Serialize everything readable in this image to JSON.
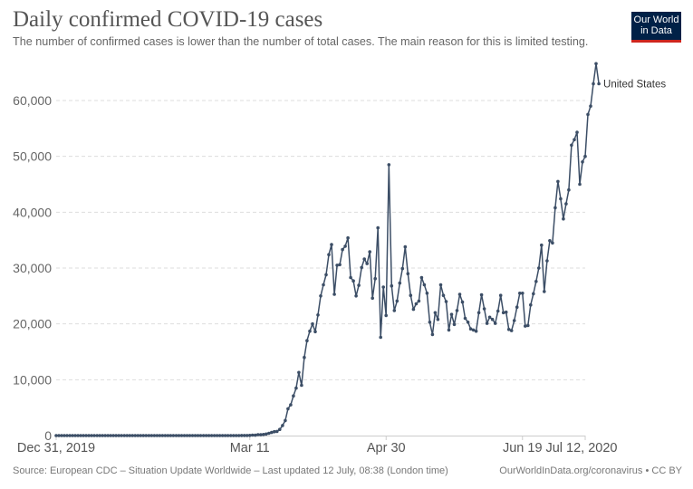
{
  "header": {
    "title": "Daily confirmed COVID-19 cases",
    "subtitle": "The number of confirmed cases is lower than the number of total cases. The main reason for this is limited testing.",
    "logo_line1": "Our World",
    "logo_line2": "in Data"
  },
  "footer": {
    "source": "Source: European CDC – Situation Update Worldwide – Last updated 12 July, 08:38 (London time)",
    "credit": "OurWorldInData.org/coronavirus • CC BY"
  },
  "colors": {
    "series": "#3c4e66",
    "grid": "#dddddd",
    "logo_bg": "#002147",
    "logo_accent": "#ce261e"
  },
  "chart_data": {
    "type": "line",
    "title": "Daily confirmed COVID-19 cases",
    "subtitle": "The number of confirmed cases is lower than the number of total cases. The main reason for this is limited testing.",
    "xlabel": "",
    "ylabel": "",
    "x_start": "2019-12-31",
    "x_end": "2020-07-12",
    "x_unit": "day",
    "xticks": [
      {
        "label": "Dec 31, 2019",
        "day": 0
      },
      {
        "label": "Mar 11",
        "day": 71
      },
      {
        "label": "Apr 30",
        "day": 121
      },
      {
        "label": "Jun 19",
        "day": 171
      },
      {
        "label": "Jul 12, 2020",
        "day": 194
      }
    ],
    "yticks": [
      {
        "label": "0",
        "value": 0
      },
      {
        "label": "10,000",
        "value": 10000
      },
      {
        "label": "20,000",
        "value": 20000
      },
      {
        "label": "30,000",
        "value": 30000
      },
      {
        "label": "40,000",
        "value": 40000
      },
      {
        "label": "50,000",
        "value": 50000
      },
      {
        "label": "60,000",
        "value": 60000
      }
    ],
    "ylim": [
      0,
      60000
    ],
    "grid": true,
    "legend": "end-of-line label",
    "series": [
      {
        "name": "United States",
        "values": [
          0,
          0,
          0,
          0,
          0,
          0,
          0,
          0,
          0,
          0,
          0,
          0,
          0,
          0,
          0,
          0,
          0,
          0,
          0,
          0,
          0,
          1,
          0,
          0,
          1,
          0,
          3,
          0,
          0,
          0,
          0,
          1,
          1,
          0,
          0,
          0,
          0,
          0,
          0,
          0,
          0,
          0,
          0,
          0,
          0,
          0,
          0,
          0,
          0,
          0,
          0,
          0,
          0,
          0,
          0,
          0,
          0,
          0,
          0,
          0,
          1,
          0,
          0,
          0,
          3,
          5,
          4,
          3,
          16,
          9,
          14,
          25,
          80,
          70,
          170,
          150,
          200,
          270,
          400,
          550,
          700,
          750,
          1100,
          1800,
          2700,
          4800,
          5500,
          7100,
          8500,
          11300,
          9000,
          14000,
          17000,
          18700,
          20000,
          18600,
          21600,
          25000,
          27000,
          28800,
          32400,
          34200,
          25300,
          30500,
          30600,
          33300,
          33900,
          35400,
          28300,
          27700,
          25000,
          26900,
          30100,
          31600,
          30800,
          32900,
          24600,
          28100,
          37200,
          17600,
          26600,
          21500,
          48500,
          26800,
          22400,
          24100,
          27300,
          29900,
          33800,
          29000,
          25100,
          22600,
          23600,
          24100,
          28300,
          27000,
          25500,
          20300,
          18100,
          22000,
          20800,
          27000,
          25100,
          24000,
          18900,
          21700,
          19900,
          22400,
          25300,
          23900,
          21000,
          20300,
          19100,
          18900,
          18700,
          22000,
          25200,
          22700,
          20100,
          21200,
          20800,
          20100,
          22300,
          25100,
          22000,
          22100,
          19000,
          18800,
          20600,
          23000,
          25500,
          25500,
          19600,
          19700,
          23400,
          25400,
          27600,
          30000,
          34100,
          25800,
          31300,
          34900,
          34500,
          40800,
          45500,
          42400,
          38800,
          41500,
          44000,
          52000,
          53000,
          54300,
          45000,
          49000,
          50000,
          57500,
          59000,
          63000,
          66600,
          63000
        ]
      }
    ]
  }
}
